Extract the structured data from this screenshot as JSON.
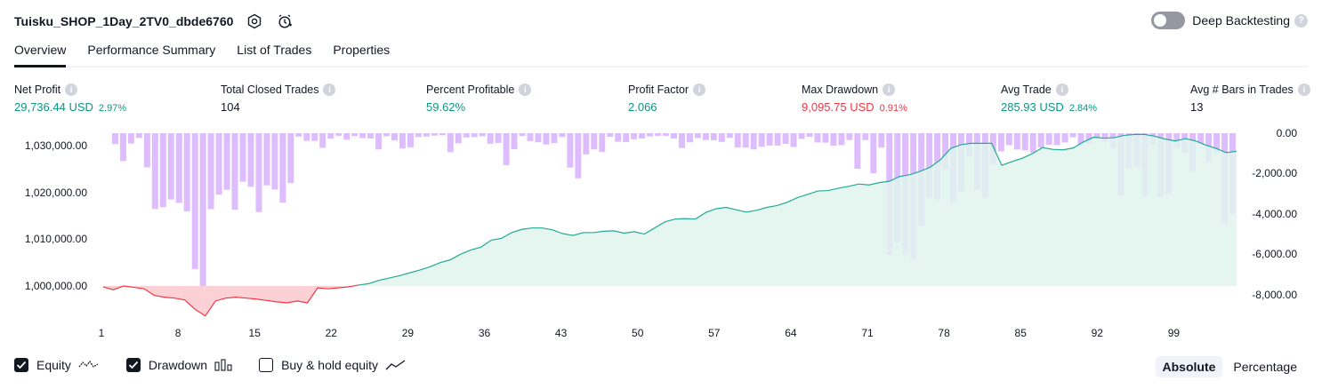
{
  "header": {
    "title": "Tuisku_SHOP_1Day_2TV0_dbde6760",
    "deep_backtesting_label": "Deep Backtesting"
  },
  "tabs": [
    {
      "label": "Overview",
      "active": true
    },
    {
      "label": "Performance Summary",
      "active": false
    },
    {
      "label": "List of Trades",
      "active": false
    },
    {
      "label": "Properties",
      "active": false
    }
  ],
  "metrics": {
    "net_profit": {
      "label": "Net Profit",
      "value": "29,736.44 USD",
      "sub": "2.97%"
    },
    "total_closed_trades": {
      "label": "Total Closed Trades",
      "value": "104"
    },
    "percent_profitable": {
      "label": "Percent Profitable",
      "value": "59.62%"
    },
    "profit_factor": {
      "label": "Profit Factor",
      "value": "2.066"
    },
    "max_drawdown": {
      "label": "Max Drawdown",
      "value": "9,095.75 USD",
      "sub": "0.91%"
    },
    "avg_trade": {
      "label": "Avg Trade",
      "value": "285.93 USD",
      "sub": "2.84%"
    },
    "avg_bars": {
      "label": "Avg # Bars in Trades",
      "value": "13"
    }
  },
  "colors": {
    "green": "#089981",
    "red": "#f23645",
    "drawdown_bar": "#cc99ff",
    "equity_line": "#22ab94",
    "equity_fill": "#e1f5ee",
    "loss_line": "#f23645",
    "loss_fill": "#fbd1d6"
  },
  "chart_data": {
    "type": "line+bar",
    "x_ticks": [
      "1",
      "8",
      "15",
      "22",
      "29",
      "36",
      "43",
      "50",
      "57",
      "64",
      "71",
      "78",
      "85",
      "92",
      "99"
    ],
    "left_axis_ticks": [
      "1,030,000.00",
      "1,020,000.00",
      "1,010,000.00",
      "1,000,000.00"
    ],
    "right_axis_ticks": [
      "0.00",
      "-2,000.00",
      "-4,000.00",
      "-6,000.00",
      "-8,000.00"
    ],
    "equity_baseline": 1000000,
    "series": [
      {
        "name": "Equity",
        "values": [
          999800,
          999200,
          1000000,
          999700,
          999400,
          998000,
          997600,
          997400,
          997000,
          995000,
          993600,
          996800,
          997400,
          997600,
          997400,
          997200,
          996900,
          996600,
          996400,
          996800,
          996400,
          999600,
          999400,
          999600,
          999800,
          1000200,
          1000500,
          1001200,
          1001700,
          1002200,
          1002800,
          1003400,
          1004100,
          1005000,
          1005600,
          1006800,
          1007700,
          1008300,
          1009800,
          1010200,
          1011400,
          1012100,
          1012400,
          1012400,
          1012000,
          1011200,
          1010800,
          1011400,
          1011400,
          1011700,
          1011800,
          1011300,
          1011600,
          1011100,
          1012400,
          1013700,
          1014300,
          1014400,
          1014300,
          1015700,
          1016500,
          1016800,
          1016300,
          1015800,
          1016200,
          1016800,
          1017200,
          1017900,
          1018900,
          1019600,
          1020300,
          1020400,
          1020900,
          1021300,
          1021800,
          1021600,
          1022100,
          1022400,
          1023400,
          1023800,
          1024500,
          1025400,
          1027000,
          1029400,
          1030200,
          1030500,
          1030500,
          1030500,
          1025800,
          1026600,
          1027300,
          1028300,
          1029600,
          1029200,
          1029100,
          1029500,
          1030800,
          1031800,
          1031600,
          1031700,
          1032200,
          1032400,
          1032400,
          1032000,
          1031400,
          1031000,
          1031500,
          1031000,
          1030100,
          1029400,
          1028500,
          1028800
        ]
      },
      {
        "name": "Drawdown",
        "values": [
          0,
          -540,
          -1380,
          -510,
          -230,
          -1690,
          -3750,
          -3660,
          -3280,
          -3450,
          -3870,
          -6720,
          -8360,
          -3760,
          -3040,
          -2800,
          -3790,
          -2400,
          -2650,
          -3900,
          -2580,
          -2790,
          -3440,
          -2470,
          -170,
          -380,
          -380,
          -720,
          -270,
          -130,
          -320,
          -140,
          -240,
          -260,
          -800,
          -150,
          -360,
          -760,
          -700,
          -190,
          -170,
          -120,
          -100,
          -940,
          -500,
          -210,
          -190,
          -150,
          -520,
          -480,
          -1580,
          -790,
          -140,
          -390,
          -450,
          -560,
          -490,
          -190,
          -1700,
          -2230,
          -1050,
          -800,
          -930,
          -180,
          -420,
          -440,
          -300,
          -260,
          -160,
          -130,
          -130,
          -260,
          -730,
          -450,
          -240,
          -340,
          -350,
          -430,
          -230,
          -710,
          -710,
          -800,
          -670,
          -610,
          -610,
          -530,
          -680,
          -280,
          -180,
          -460,
          -470,
          -620,
          -590,
          -340,
          -1760,
          -340,
          -1980,
          -710,
          -6020,
          -5410,
          -6000,
          -6220,
          -4580,
          -3190,
          -3290,
          -1790,
          -3420,
          -2890,
          -1180,
          -2800,
          -3200,
          -1560,
          -900,
          -590,
          -810,
          -850,
          -970,
          -720,
          -570,
          -590,
          -460,
          -200,
          -630,
          -520,
          -260,
          -430,
          -760,
          -3080,
          -1740,
          -1690,
          -3110,
          -560,
          -3160,
          -3010,
          -720,
          -970,
          -1890,
          -540,
          -1430,
          -980,
          -4490,
          -4000
        ]
      }
    ],
    "legend": [
      "Equity",
      "Drawdown",
      "Buy & hold equity"
    ]
  },
  "legend": {
    "equity": {
      "label": "Equity",
      "checked": true
    },
    "drawdown": {
      "label": "Drawdown",
      "checked": true
    },
    "buy_hold": {
      "label": "Buy & hold equity",
      "checked": false
    }
  },
  "modes": [
    {
      "label": "Absolute",
      "active": true
    },
    {
      "label": "Percentage",
      "active": false
    }
  ]
}
